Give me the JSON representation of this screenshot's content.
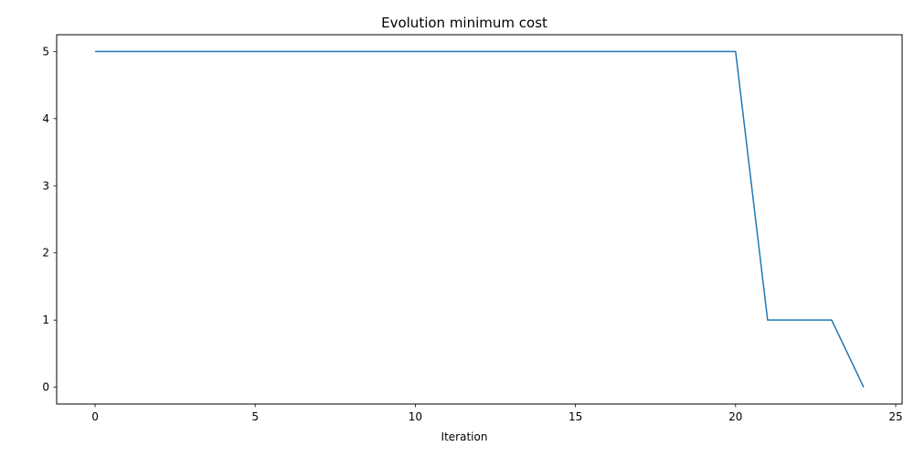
{
  "chart_data": {
    "type": "line",
    "title": "Evolution minimum cost",
    "xlabel": "Iteration",
    "ylabel": "",
    "xlim": [
      -1.2,
      25.2
    ],
    "ylim": [
      -0.25,
      5.25
    ],
    "xticks": [
      0,
      5,
      10,
      15,
      20,
      25
    ],
    "yticks": [
      0,
      1,
      2,
      3,
      4,
      5
    ],
    "grid": false,
    "legend": "none",
    "series": [
      {
        "color": "#1f77b4",
        "x": [
          0,
          1,
          2,
          3,
          4,
          5,
          6,
          7,
          8,
          9,
          10,
          11,
          12,
          13,
          14,
          15,
          16,
          17,
          18,
          19,
          20,
          21,
          22,
          23,
          24
        ],
        "y": [
          5,
          5,
          5,
          5,
          5,
          5,
          5,
          5,
          5,
          5,
          5,
          5,
          5,
          5,
          5,
          5,
          5,
          5,
          5,
          5,
          5,
          1,
          1,
          1,
          0
        ]
      }
    ]
  }
}
